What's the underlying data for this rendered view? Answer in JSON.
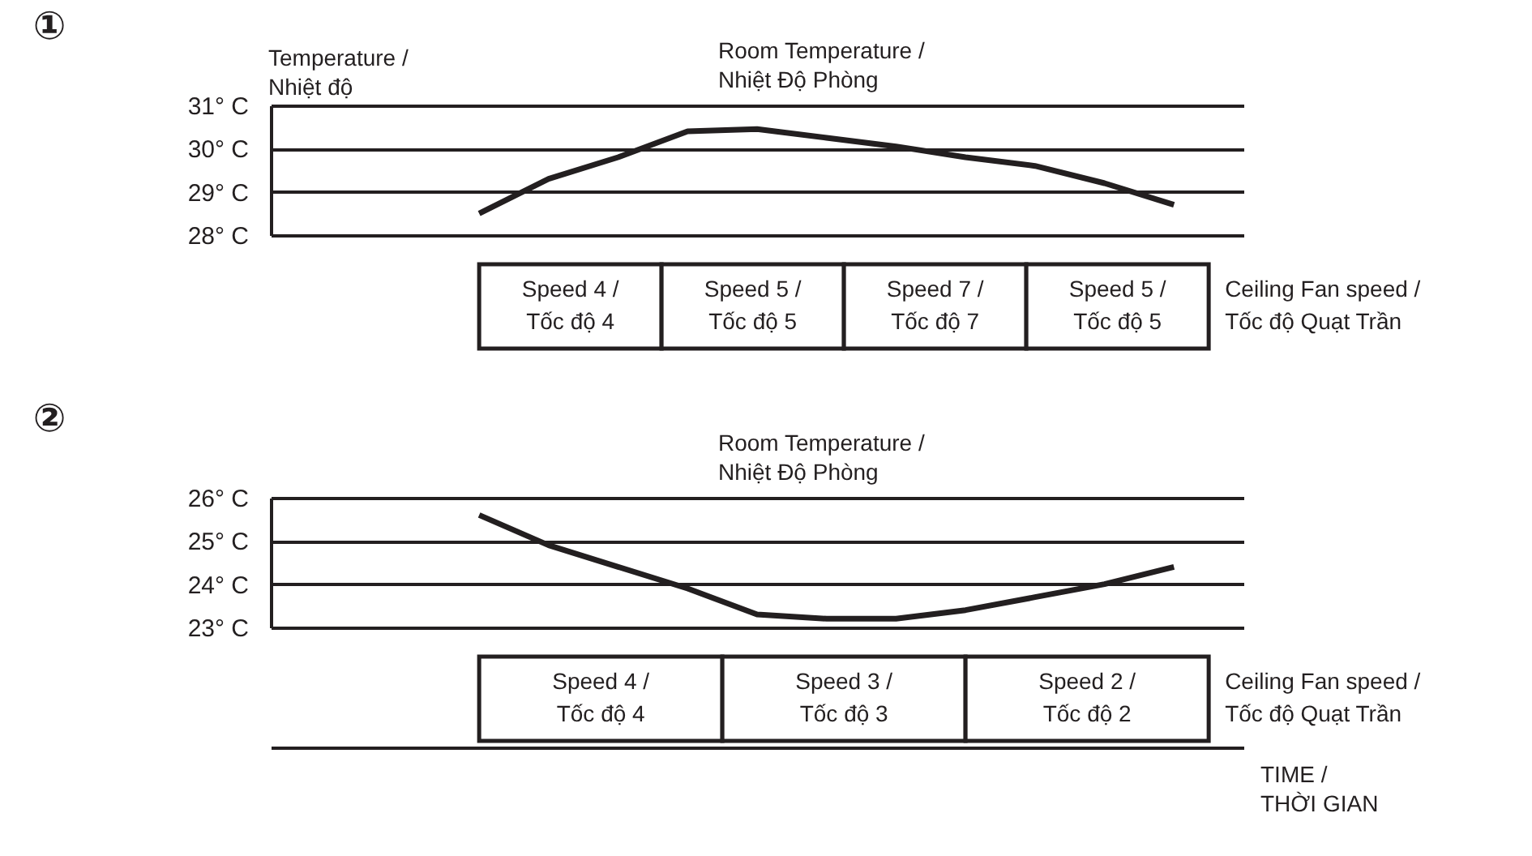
{
  "chart_data": [
    {
      "type": "line",
      "title": "①",
      "ylabel": "Temperature / Nhiệt độ",
      "categories": [
        null,
        null,
        null,
        null,
        null,
        null,
        null,
        null,
        null,
        null,
        null,
        null,
        null,
        null,
        null
      ],
      "series": [
        {
          "name": "Room Temperature / Nhiệt Độ Phòng",
          "color": "#231f20",
          "values": [
            null,
            null,
            null,
            28.5,
            29.3,
            29.8,
            30.4,
            30.45,
            30.25,
            30.05,
            29.8,
            29.6,
            29.2,
            28.7,
            null
          ]
        }
      ],
      "ylim": [
        28,
        31
      ],
      "yticks": [
        {
          "value": 28,
          "label": "28° C"
        },
        {
          "value": 29,
          "label": "29° C"
        },
        {
          "value": 30,
          "label": "30° C"
        },
        {
          "value": 31,
          "label": "31° C"
        }
      ],
      "grid": "y",
      "tick_labels": "y",
      "marker": "none",
      "line_style": "solid",
      "annotations": [
        "Speed 4 / Tốc độ 4",
        "Speed 5 / Tốc độ 5",
        "Speed 7 / Tốc độ 7",
        "Speed 5 / Tốc độ 5",
        "Ceiling Fan speed / Tốc độ Quạt Trần"
      ]
    },
    {
      "type": "line",
      "title": "②",
      "xlabel": "TIME / THỜI GIAN",
      "categories": [
        null,
        null,
        null,
        null,
        null,
        null,
        null,
        null,
        null,
        null,
        null,
        null,
        null,
        null,
        null
      ],
      "series": [
        {
          "name": "Room Temperature / Nhiệt Độ Phòng",
          "color": "#231f20",
          "values": [
            null,
            null,
            null,
            25.6,
            24.9,
            24.4,
            23.9,
            23.3,
            23.2,
            23.2,
            23.4,
            23.7,
            24.0,
            24.4,
            null
          ]
        }
      ],
      "ylim": [
        23,
        26
      ],
      "yticks": [
        {
          "value": 23,
          "label": "23° C"
        },
        {
          "value": 24,
          "label": "24° C"
        },
        {
          "value": 25,
          "label": "25° C"
        },
        {
          "value": 26,
          "label": "26° C"
        }
      ],
      "grid": "y",
      "tick_labels": "y",
      "marker": "none",
      "line_style": "solid",
      "annotations": [
        "Speed 4 / Tốc độ 4",
        "Speed 3 / Tốc độ 3",
        "Speed 2 / Tốc độ 2",
        "Ceiling Fan speed / Tốc độ Quạt Trần"
      ]
    }
  ]
}
